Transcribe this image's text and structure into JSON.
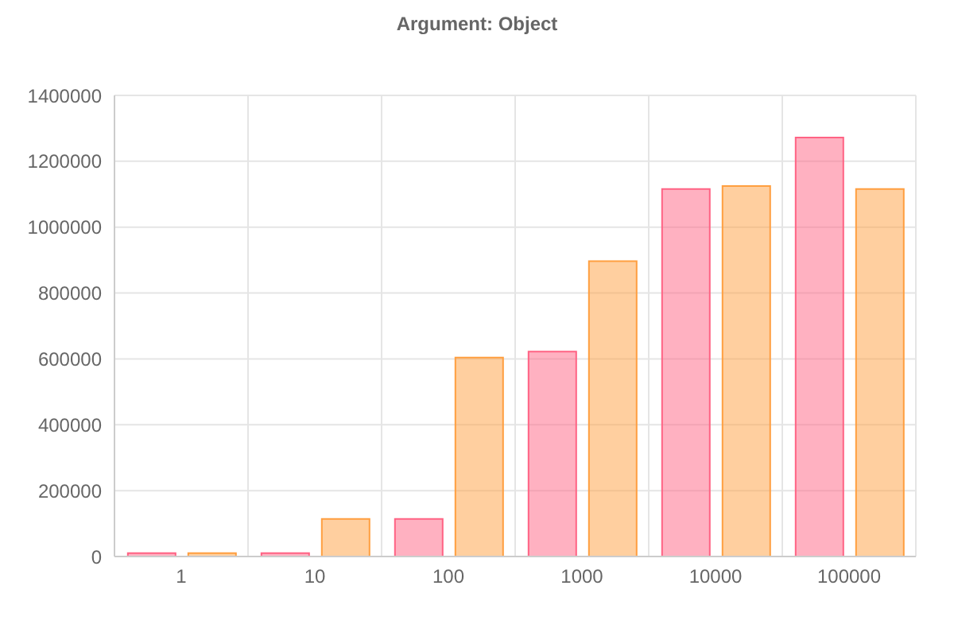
{
  "chart_data": {
    "type": "bar",
    "title": "Argument: Object",
    "categories": [
      "1",
      "10",
      "100",
      "1000",
      "10000",
      "100000"
    ],
    "series": [
      {
        "color": "#ff6384",
        "values": [
          10000,
          10000,
          114000,
          622000,
          1116000,
          1272000
        ]
      },
      {
        "color": "#ff9f40",
        "values": [
          10000,
          114000,
          604000,
          897000,
          1125000,
          1116000
        ]
      }
    ],
    "ylim": [
      0,
      1400000
    ],
    "yticks": [
      0,
      200000,
      400000,
      600000,
      800000,
      1000000,
      1200000,
      1400000
    ],
    "grid": true
  }
}
